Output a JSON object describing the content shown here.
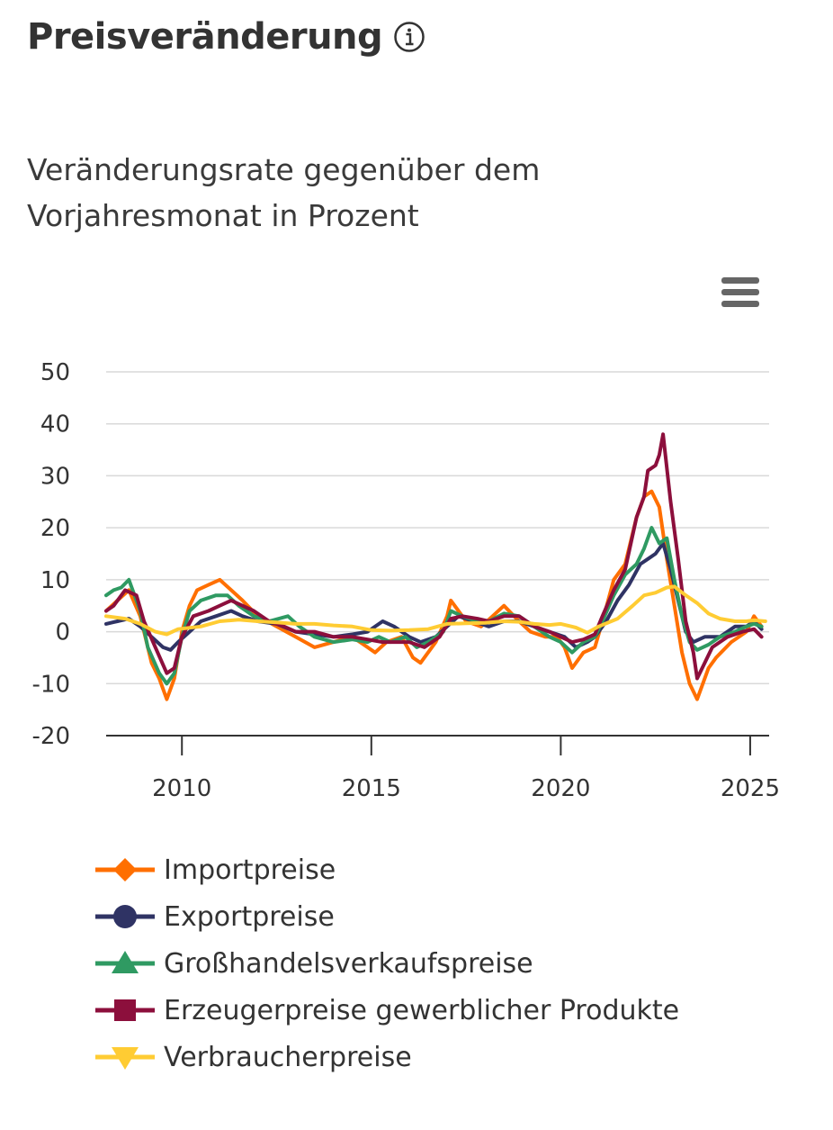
{
  "header": {
    "title": "Preisveränderung",
    "info_icon": "info-circle-icon"
  },
  "subtitle_lines": [
    "Veränderungsrate gegenüber dem",
    "Vorjahresmonat in Prozent"
  ],
  "menu": {
    "icon": "hamburger-menu-icon"
  },
  "chart_data": {
    "type": "line",
    "title": "",
    "xlabel": "",
    "ylabel": "",
    "xlim": [
      2008.0,
      2025.5
    ],
    "ylim": [
      -20,
      50
    ],
    "yticks": [
      -20,
      -10,
      0,
      10,
      20,
      30,
      40,
      50
    ],
    "xticks": [
      2010,
      2015,
      2020,
      2025
    ],
    "grid": "horizontal",
    "legend_position": "bottom",
    "series": [
      {
        "name": "Importpreise",
        "color": "#ff6f00",
        "marker": "diamond",
        "points": [
          [
            2008.0,
            4
          ],
          [
            2008.3,
            6
          ],
          [
            2008.6,
            8
          ],
          [
            2008.9,
            3
          ],
          [
            2009.2,
            -6
          ],
          [
            2009.4,
            -9
          ],
          [
            2009.6,
            -13
          ],
          [
            2009.8,
            -9
          ],
          [
            2010.0,
            0
          ],
          [
            2010.2,
            5
          ],
          [
            2010.4,
            8
          ],
          [
            2010.7,
            9
          ],
          [
            2011.0,
            10
          ],
          [
            2011.3,
            8
          ],
          [
            2011.6,
            6
          ],
          [
            2012.0,
            3
          ],
          [
            2012.5,
            1
          ],
          [
            2013.0,
            -1
          ],
          [
            2013.5,
            -3
          ],
          [
            2014.0,
            -2
          ],
          [
            2014.5,
            -1
          ],
          [
            2014.9,
            -3
          ],
          [
            2015.1,
            -4
          ],
          [
            2015.4,
            -2
          ],
          [
            2015.8,
            -1
          ],
          [
            2016.1,
            -5
          ],
          [
            2016.3,
            -6
          ],
          [
            2016.7,
            -2
          ],
          [
            2017.0,
            3
          ],
          [
            2017.1,
            6
          ],
          [
            2017.5,
            2
          ],
          [
            2017.9,
            1
          ],
          [
            2018.2,
            3
          ],
          [
            2018.5,
            5
          ],
          [
            2018.9,
            2
          ],
          [
            2019.2,
            0
          ],
          [
            2019.6,
            -1
          ],
          [
            2019.9,
            -1
          ],
          [
            2020.1,
            -3
          ],
          [
            2020.3,
            -7
          ],
          [
            2020.6,
            -4
          ],
          [
            2020.9,
            -3
          ],
          [
            2021.1,
            2
          ],
          [
            2021.4,
            10
          ],
          [
            2021.7,
            13
          ],
          [
            2022.0,
            22
          ],
          [
            2022.2,
            26
          ],
          [
            2022.4,
            27
          ],
          [
            2022.6,
            24
          ],
          [
            2022.8,
            14
          ],
          [
            2023.0,
            5
          ],
          [
            2023.2,
            -4
          ],
          [
            2023.4,
            -10
          ],
          [
            2023.6,
            -13
          ],
          [
            2023.9,
            -7
          ],
          [
            2024.1,
            -5
          ],
          [
            2024.5,
            -2
          ],
          [
            2024.9,
            0
          ],
          [
            2025.1,
            3
          ],
          [
            2025.3,
            1
          ]
        ]
      },
      {
        "name": "Exportpreise",
        "color": "#2f3364",
        "marker": "circle",
        "points": [
          [
            2008.0,
            1.5
          ],
          [
            2008.3,
            2
          ],
          [
            2008.6,
            2.5
          ],
          [
            2008.9,
            1
          ],
          [
            2009.2,
            -1
          ],
          [
            2009.5,
            -3
          ],
          [
            2009.7,
            -3.5
          ],
          [
            2009.9,
            -2
          ],
          [
            2010.2,
            0
          ],
          [
            2010.5,
            2
          ],
          [
            2010.9,
            3
          ],
          [
            2011.3,
            4
          ],
          [
            2011.6,
            3
          ],
          [
            2012.0,
            2
          ],
          [
            2012.5,
            1.5
          ],
          [
            2013.0,
            0
          ],
          [
            2013.5,
            -0.5
          ],
          [
            2014.0,
            -1
          ],
          [
            2014.5,
            -0.5
          ],
          [
            2014.9,
            0
          ],
          [
            2015.3,
            2
          ],
          [
            2015.6,
            1
          ],
          [
            2016.0,
            -1
          ],
          [
            2016.3,
            -2
          ],
          [
            2016.7,
            -1
          ],
          [
            2017.0,
            1
          ],
          [
            2017.3,
            3
          ],
          [
            2017.7,
            2
          ],
          [
            2018.1,
            1
          ],
          [
            2018.5,
            2
          ],
          [
            2018.9,
            2
          ],
          [
            2019.3,
            1
          ],
          [
            2019.7,
            0
          ],
          [
            2020.1,
            -1
          ],
          [
            2020.4,
            -3
          ],
          [
            2020.7,
            -2
          ],
          [
            2020.9,
            -1
          ],
          [
            2021.2,
            2
          ],
          [
            2021.5,
            6
          ],
          [
            2021.8,
            9
          ],
          [
            2022.1,
            13
          ],
          [
            2022.3,
            14
          ],
          [
            2022.5,
            15
          ],
          [
            2022.7,
            17
          ],
          [
            2022.9,
            12
          ],
          [
            2023.1,
            6
          ],
          [
            2023.3,
            0
          ],
          [
            2023.5,
            -2
          ],
          [
            2023.8,
            -1
          ],
          [
            2024.2,
            -1
          ],
          [
            2024.6,
            1
          ],
          [
            2024.9,
            1
          ],
          [
            2025.1,
            2
          ],
          [
            2025.3,
            0.5
          ]
        ]
      },
      {
        "name": "Großhandelsverkaufspreise",
        "color": "#2f9a62",
        "marker": "triangle",
        "points": [
          [
            2008.0,
            7
          ],
          [
            2008.2,
            8
          ],
          [
            2008.4,
            8.5
          ],
          [
            2008.6,
            10
          ],
          [
            2008.9,
            4
          ],
          [
            2009.1,
            -3
          ],
          [
            2009.4,
            -8
          ],
          [
            2009.6,
            -10
          ],
          [
            2009.8,
            -8
          ],
          [
            2010.0,
            -1
          ],
          [
            2010.2,
            4
          ],
          [
            2010.5,
            6
          ],
          [
            2010.9,
            7
          ],
          [
            2011.2,
            7
          ],
          [
            2011.5,
            5
          ],
          [
            2011.9,
            3
          ],
          [
            2012.3,
            2
          ],
          [
            2012.8,
            3
          ],
          [
            2013.1,
            1
          ],
          [
            2013.5,
            -1
          ],
          [
            2014.0,
            -2
          ],
          [
            2014.5,
            -1.5
          ],
          [
            2014.9,
            -2
          ],
          [
            2015.2,
            -1
          ],
          [
            2015.5,
            -2
          ],
          [
            2015.9,
            -1
          ],
          [
            2016.2,
            -3
          ],
          [
            2016.5,
            -2
          ],
          [
            2016.9,
            0
          ],
          [
            2017.1,
            4
          ],
          [
            2017.4,
            3
          ],
          [
            2017.8,
            2
          ],
          [
            2018.1,
            2
          ],
          [
            2018.5,
            3.5
          ],
          [
            2018.9,
            3
          ],
          [
            2019.3,
            1
          ],
          [
            2019.7,
            -1
          ],
          [
            2020.0,
            -2
          ],
          [
            2020.3,
            -4
          ],
          [
            2020.6,
            -2
          ],
          [
            2020.9,
            -1
          ],
          [
            2021.1,
            2
          ],
          [
            2021.4,
            7
          ],
          [
            2021.7,
            11
          ],
          [
            2022.0,
            13
          ],
          [
            2022.2,
            16
          ],
          [
            2022.4,
            20
          ],
          [
            2022.6,
            17
          ],
          [
            2022.8,
            18
          ],
          [
            2023.0,
            10
          ],
          [
            2023.2,
            3
          ],
          [
            2023.4,
            -2
          ],
          [
            2023.6,
            -3.5
          ],
          [
            2023.9,
            -2.5
          ],
          [
            2024.2,
            -1
          ],
          [
            2024.6,
            0
          ],
          [
            2024.9,
            1
          ],
          [
            2025.1,
            1.5
          ],
          [
            2025.3,
            1
          ]
        ]
      },
      {
        "name": "Erzeugerpreise gewerblicher Produkte",
        "color": "#8c0f3c",
        "marker": "square",
        "points": [
          [
            2008.0,
            4
          ],
          [
            2008.2,
            5
          ],
          [
            2008.5,
            8
          ],
          [
            2008.8,
            7
          ],
          [
            2009.0,
            2
          ],
          [
            2009.3,
            -3
          ],
          [
            2009.6,
            -8
          ],
          [
            2009.8,
            -7
          ],
          [
            2010.0,
            -1
          ],
          [
            2010.3,
            3
          ],
          [
            2010.7,
            4
          ],
          [
            2011.0,
            5
          ],
          [
            2011.3,
            6
          ],
          [
            2011.6,
            5
          ],
          [
            2011.9,
            4
          ],
          [
            2012.3,
            2
          ],
          [
            2012.7,
            1
          ],
          [
            2013.0,
            0
          ],
          [
            2013.5,
            0
          ],
          [
            2014.0,
            -1
          ],
          [
            2014.5,
            -1
          ],
          [
            2014.9,
            -1.5
          ],
          [
            2015.3,
            -2
          ],
          [
            2015.6,
            -2
          ],
          [
            2016.0,
            -2
          ],
          [
            2016.4,
            -3
          ],
          [
            2016.8,
            -1
          ],
          [
            2017.1,
            2.5
          ],
          [
            2017.4,
            3
          ],
          [
            2017.8,
            2.5
          ],
          [
            2018.1,
            2
          ],
          [
            2018.5,
            3
          ],
          [
            2018.9,
            3
          ],
          [
            2019.3,
            1
          ],
          [
            2019.7,
            0
          ],
          [
            2020.0,
            -1
          ],
          [
            2020.3,
            -2
          ],
          [
            2020.6,
            -1.5
          ],
          [
            2020.9,
            -0.5
          ],
          [
            2021.1,
            3
          ],
          [
            2021.4,
            8
          ],
          [
            2021.7,
            12
          ],
          [
            2022.0,
            22
          ],
          [
            2022.2,
            26
          ],
          [
            2022.3,
            31
          ],
          [
            2022.5,
            32
          ],
          [
            2022.6,
            34
          ],
          [
            2022.7,
            38
          ],
          [
            2022.9,
            25
          ],
          [
            2023.1,
            14
          ],
          [
            2023.3,
            2
          ],
          [
            2023.5,
            -4
          ],
          [
            2023.6,
            -9
          ],
          [
            2023.8,
            -6
          ],
          [
            2024.0,
            -3
          ],
          [
            2024.4,
            -1
          ],
          [
            2024.8,
            0
          ],
          [
            2025.1,
            0.5
          ],
          [
            2025.3,
            -1
          ]
        ]
      },
      {
        "name": "Verbraucherpreise",
        "color": "#ffcc33",
        "marker": "triangle-down",
        "points": [
          [
            2008.0,
            3
          ],
          [
            2008.5,
            2.5
          ],
          [
            2008.9,
            1.5
          ],
          [
            2009.3,
            0
          ],
          [
            2009.6,
            -0.5
          ],
          [
            2009.9,
            0.5
          ],
          [
            2010.5,
            1
          ],
          [
            2011.0,
            2
          ],
          [
            2011.5,
            2.3
          ],
          [
            2012.0,
            2
          ],
          [
            2012.5,
            1.8
          ],
          [
            2013.0,
            1.5
          ],
          [
            2013.5,
            1.5
          ],
          [
            2014.0,
            1.2
          ],
          [
            2014.5,
            1
          ],
          [
            2015.0,
            0.3
          ],
          [
            2015.5,
            0.2
          ],
          [
            2016.0,
            0.3
          ],
          [
            2016.5,
            0.5
          ],
          [
            2017.0,
            1.5
          ],
          [
            2017.5,
            1.6
          ],
          [
            2018.0,
            1.7
          ],
          [
            2018.5,
            2
          ],
          [
            2018.9,
            1.9
          ],
          [
            2019.3,
            1.5
          ],
          [
            2019.7,
            1.3
          ],
          [
            2020.0,
            1.5
          ],
          [
            2020.4,
            0.8
          ],
          [
            2020.7,
            -0.2
          ],
          [
            2021.0,
            1
          ],
          [
            2021.5,
            2.5
          ],
          [
            2021.9,
            5
          ],
          [
            2022.2,
            7
          ],
          [
            2022.5,
            7.5
          ],
          [
            2022.8,
            8.5
          ],
          [
            2023.0,
            8.7
          ],
          [
            2023.3,
            7
          ],
          [
            2023.6,
            5.5
          ],
          [
            2023.9,
            3.5
          ],
          [
            2024.2,
            2.5
          ],
          [
            2024.6,
            2
          ],
          [
            2024.9,
            2
          ],
          [
            2025.1,
            2.2
          ],
          [
            2025.4,
            2
          ]
        ]
      }
    ]
  }
}
